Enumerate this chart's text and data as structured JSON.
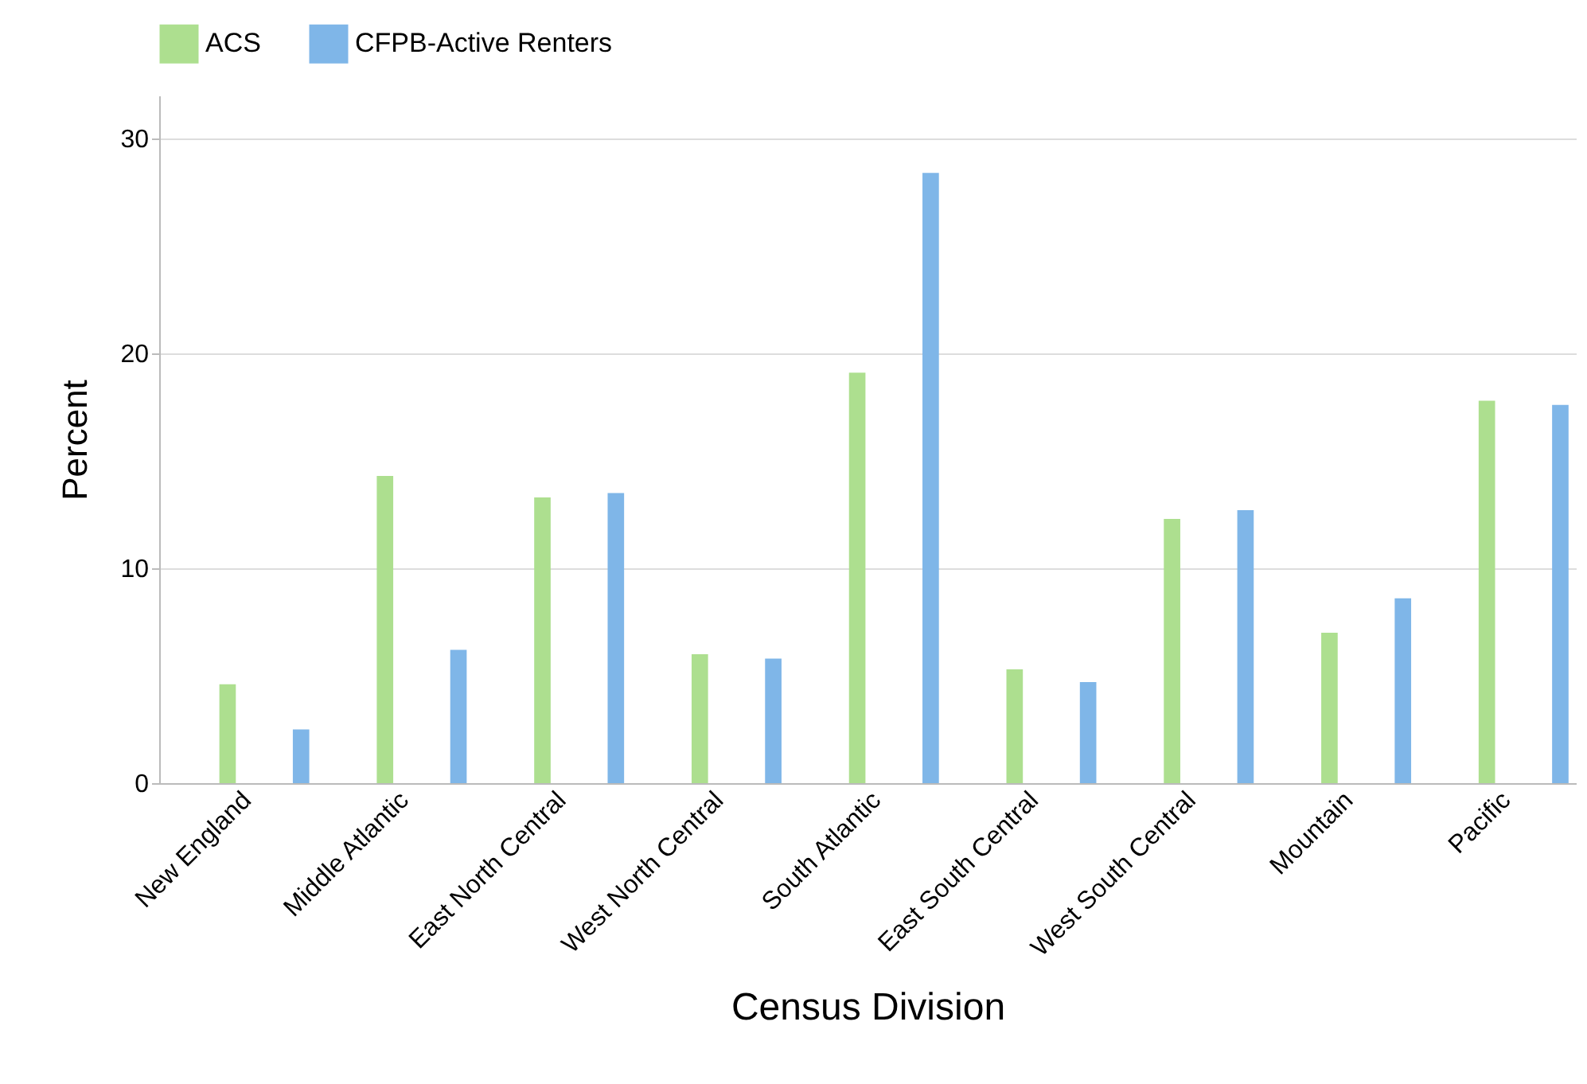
{
  "chart_data": {
    "type": "bar",
    "xlabel": "Census Division",
    "ylabel": "Percent",
    "categories": [
      "New England",
      "Middle Atlantic",
      "East North Central",
      "West North Central",
      "South Atlantic",
      "East South Central",
      "West South Central",
      "Mountain",
      "Pacific"
    ],
    "series": [
      {
        "name": "ACS",
        "color": "#addf8f",
        "values": [
          4.6,
          14.3,
          13.3,
          6.0,
          19.1,
          5.3,
          12.3,
          7.0,
          17.8
        ]
      },
      {
        "name": "CFPB-Active Renters",
        "color": "#7fb6e8",
        "values": [
          2.5,
          6.2,
          13.5,
          5.8,
          28.4,
          4.7,
          12.7,
          8.6,
          17.6
        ]
      }
    ],
    "ylim": [
      0,
      32
    ],
    "yticks": [
      0,
      10,
      20,
      30
    ],
    "grid": "y",
    "legend": "top"
  }
}
